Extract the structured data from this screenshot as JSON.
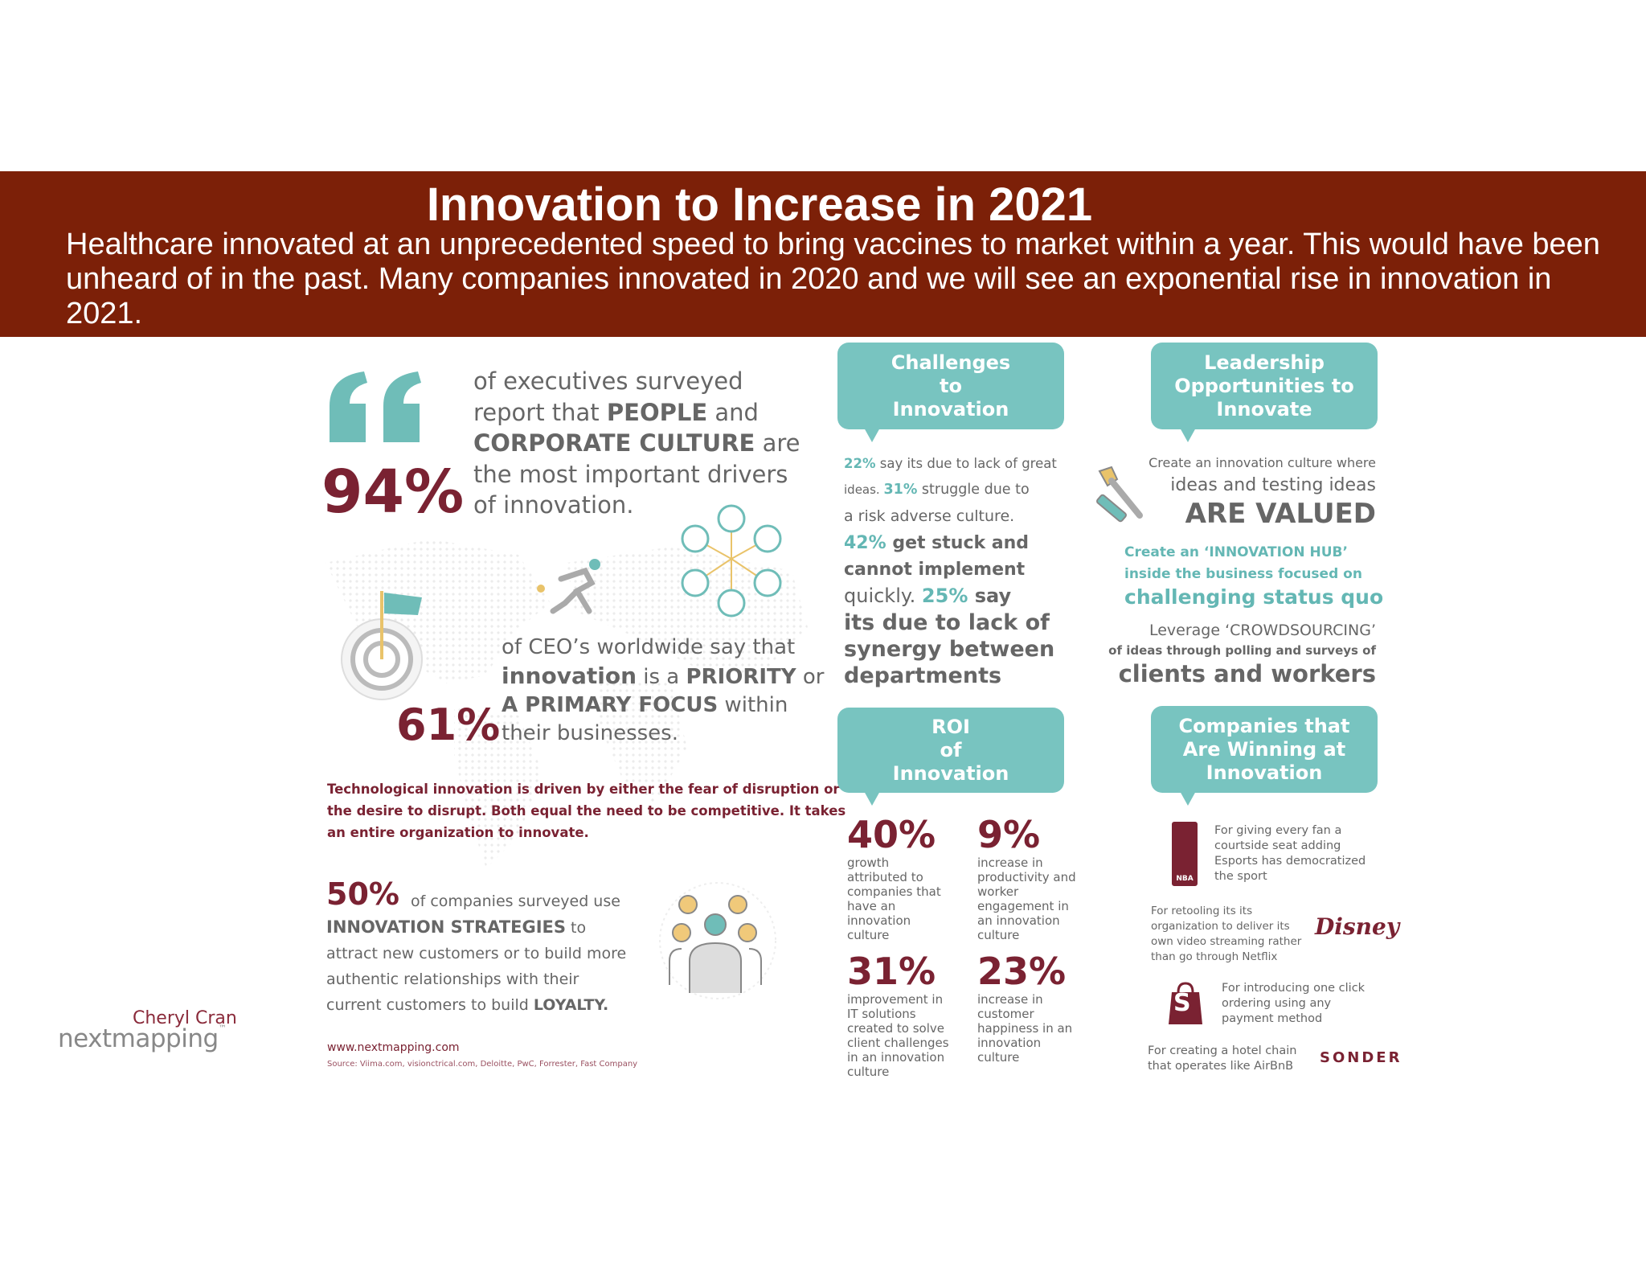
{
  "banner": {
    "title": "Innovation to Increase in 2021",
    "text": "Healthcare innovated at an unprecedented speed to bring vaccines to market within a year. This would have been unheard of in the past. Many companies innovated in 2020 and we will see an exponential rise in innovation in 2021."
  },
  "colors": {
    "banner": "#7c2008",
    "teal": "#78c4c0",
    "maroon": "#7a2232"
  },
  "left": {
    "stat94": {
      "value": "94%",
      "t1": "of executives surveyed",
      "t2a": "report that ",
      "t2b": "PEOPLE",
      "t2c": " and",
      "t3a": "CORPORATE CULTURE",
      "t3b": " are",
      "t4": "the most important drivers",
      "t5": "of innovation."
    },
    "stat61": {
      "value": "61%",
      "t1": "of CEO’s worldwide say that",
      "t2a": "innovation",
      "t2b": " is a ",
      "t2c": "PRIORITY",
      "t2d": " or",
      "t3a": "A PRIMARY FOCUS",
      "t3b": " within",
      "t4": "their businesses."
    },
    "tech_line1": "Technological innovation is driven by either the fear of disruption or",
    "tech_line2": "the desire to disrupt. Both equal the need to be competitive. It takes",
    "tech_line3": "an entire organization to innovate.",
    "stat50": {
      "value": "50%",
      "t1": "of companies surveyed use",
      "t2a": "INNOVATION STRATEGIES",
      "t2b": " to",
      "t3": "attract new customers or to build more",
      "t4": "authentic relationships with their",
      "t5a": "current customers to build ",
      "t5b": "LOYALTY."
    },
    "url": "www.nextmapping.com",
    "source": "Source: Viima.com, visionctrical.com, Deloitte, PwC, Forrester, Fast Company"
  },
  "logo": {
    "name": "Cheryl Cran",
    "brand": "nextmapping",
    "tm": "™"
  },
  "challenges": {
    "title_l1": "Challenges",
    "title_l2": "to",
    "title_l3": "Innovation",
    "p1": "22%",
    "t1": " say its due to lack of great",
    "t2a": "ideas. ",
    "p2": "31%",
    "t2b": " struggle due to",
    "t3": "a risk adverse culture.",
    "p3": "42%",
    "t4": " get stuck and",
    "t5": "cannot implement",
    "t6a": "quickly. ",
    "p4": "25%",
    "t6b": " say",
    "t7": "its due to lack of",
    "t8": "synergy between",
    "t9": "departments"
  },
  "leadership": {
    "title_l1": "Leadership",
    "title_l2": "Opportunities to",
    "title_l3": "Innovate",
    "t1": "Create an innovation culture where",
    "t2": "ideas and testing ideas",
    "t3": "ARE VALUED",
    "t4": "Create an ‘INNOVATION HUB’",
    "t5": "inside the business focused on",
    "t6": "challenging status quo",
    "t7": "Leverage ‘CROWDSOURCING’",
    "t8": "of ideas through polling and surveys of",
    "t9": "clients and workers"
  },
  "roi": {
    "title_l1": "ROI",
    "title_l2": "of",
    "title_l3": "Innovation",
    "s1": {
      "value": "40%",
      "lines": [
        "growth",
        "attributed to",
        "companies that",
        "have an",
        "innovation",
        "culture"
      ]
    },
    "s2": {
      "value": "9%",
      "lines": [
        "increase in",
        "productivity and",
        "worker",
        "engagement in",
        "an innovation",
        "culture"
      ]
    },
    "s3": {
      "value": "31%",
      "lines": [
        "improvement in",
        "IT solutions",
        "created to solve",
        "client challenges",
        "in an innovation",
        "culture"
      ]
    },
    "s4": {
      "value": "23%",
      "lines": [
        "increase in",
        "customer",
        "happiness in an",
        "innovation",
        "culture"
      ]
    }
  },
  "winning": {
    "title_l1": "Companies that",
    "title_l2": "Are Winning at",
    "title_l3": "Innovation",
    "nba": {
      "logo": "NBA",
      "lines": [
        "For giving every fan a",
        "courtside seat adding",
        "Esports has democratized",
        "the sport"
      ]
    },
    "disney": {
      "logo": "Disney",
      "lines": [
        "For retooling its its",
        "organization to deliver its",
        "own video streaming rather",
        "than go through Netflix"
      ]
    },
    "shopify": {
      "logo": "S",
      "lines": [
        "For introducing one click",
        "ordering using any",
        "payment method"
      ]
    },
    "sonder": {
      "logo": "SONDER",
      "lines": [
        "For creating a hotel chain",
        "that operates like AirBnB"
      ]
    }
  }
}
